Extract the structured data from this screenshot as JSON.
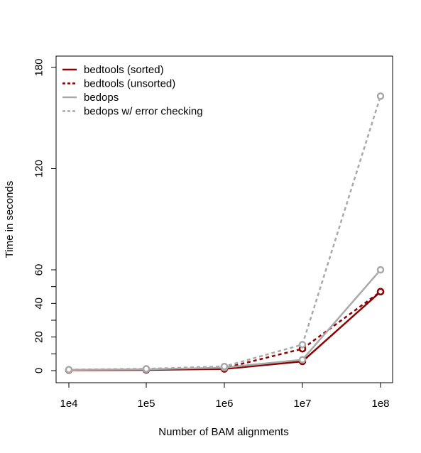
{
  "chart_data": {
    "type": "line",
    "xlabel": "Number of BAM alignments",
    "ylabel": "Time in seconds",
    "categories": [
      "1e4",
      "1e5",
      "1e6",
      "1e7",
      "1e8"
    ],
    "x_scale": "log10",
    "y_ticks": [
      0,
      20,
      40,
      60,
      120,
      180
    ],
    "y_minor_ticks": [
      10,
      30,
      50
    ],
    "y_axis_break": "discontinuous scale: 0-60 compressed-linear lower segment, 60-180 upper segment",
    "ylim": [
      -7,
      186
    ],
    "grid": false,
    "legend": "top-left",
    "series": [
      {
        "name": "bedtools (sorted)",
        "color": "#8b0000",
        "dash": "solid",
        "values": [
          0.3,
          0.4,
          1.0,
          5.5,
          47
        ]
      },
      {
        "name": "bedtools (unsorted)",
        "color": "#8b0000",
        "dash": "dashed",
        "values": [
          0.4,
          0.7,
          1.5,
          13,
          47
        ]
      },
      {
        "name": "bedops",
        "color": "#a9a9a9",
        "dash": "solid",
        "values": [
          0.5,
          0.8,
          1.8,
          6.5,
          60
        ]
      },
      {
        "name": "bedops w/ error checking",
        "color": "#a9a9a9",
        "dash": "dashed",
        "values": [
          0.6,
          1.1,
          2.5,
          15.5,
          163
        ]
      }
    ]
  }
}
